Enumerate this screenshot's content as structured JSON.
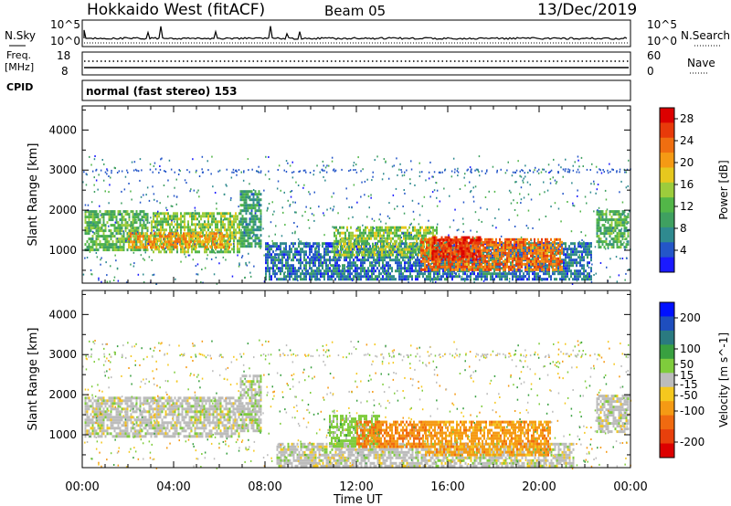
{
  "header": {
    "site": "Hokkaido West (fitACF)",
    "beam": "Beam 05",
    "date": "13/Dec/2019"
  },
  "noise_panel": {
    "left_label": "N.Sky",
    "right_label": "N.Search",
    "top_tick": "10^5",
    "bottom_tick": "10^0"
  },
  "freq_panel": {
    "left_label_1": "Freq.",
    "left_label_2": "[MHz]",
    "right_label": "Nave",
    "left_top_tick": "18",
    "left_bottom_tick": "8",
    "right_top_tick": "60",
    "right_bottom_tick": "0"
  },
  "cpid": {
    "label": "CPID",
    "mode": "normal (fast stereo) 153"
  },
  "colors": {
    "power_scale": [
      "#1a1aff",
      "#2456c8",
      "#2f8a8f",
      "#3fa060",
      "#52b648",
      "#9ccc3c",
      "#e6c81e",
      "#f59a14",
      "#f06e10",
      "#e83a0a",
      "#dc0000"
    ],
    "velocity_scale": [
      "#0010ff",
      "#1e4ebe",
      "#2a7a80",
      "#39a040",
      "#7fcc3c",
      "#bcbcbc",
      "#f5c81e",
      "#f59a14",
      "#f06a10",
      "#e8400c",
      "#dc0000"
    ]
  },
  "chart_data": [
    {
      "type": "heatmap",
      "title": "Power",
      "ylabel": "Slant Range [km]",
      "xlabel": "Time UT",
      "x_ticks": [
        "00:00",
        "04:00",
        "08:00",
        "12:00",
        "16:00",
        "20:00",
        "00:00"
      ],
      "y_ticks": [
        1000,
        2000,
        3000,
        4000
      ],
      "ylim": [
        180,
        4600
      ],
      "colorbar": {
        "label": "Power [dB]",
        "ticks": [
          4,
          8,
          12,
          16,
          20,
          24,
          28
        ],
        "range": [
          0,
          30
        ]
      },
      "regions": [
        {
          "t0": 0.1,
          "t1": 2.9,
          "r0": 1000,
          "r1": 2000,
          "value": 12
        },
        {
          "t0": 3.0,
          "t1": 6.9,
          "r0": 950,
          "r1": 1950,
          "value": 14
        },
        {
          "t0": 2.0,
          "t1": 6.5,
          "r0": 1050,
          "r1": 1450,
          "value": 20
        },
        {
          "t0": 6.9,
          "t1": 7.8,
          "r0": 1100,
          "r1": 2500,
          "value": 9
        },
        {
          "t0": 8.0,
          "t1": 22.3,
          "r0": 250,
          "r1": 1200,
          "value": 6
        },
        {
          "t0": 11.0,
          "t1": 15.5,
          "r0": 900,
          "r1": 1600,
          "value": 14
        },
        {
          "t0": 14.8,
          "t1": 21.0,
          "r0": 500,
          "r1": 1300,
          "value": 23
        },
        {
          "t0": 15.3,
          "t1": 17.4,
          "r0": 750,
          "r1": 1350,
          "value": 27
        },
        {
          "t0": 22.5,
          "t1": 23.9,
          "r0": 1050,
          "r1": 2000,
          "value": 11
        }
      ]
    },
    {
      "type": "heatmap",
      "title": "Velocity",
      "ylabel": "Slant Range [km]",
      "xlabel": "Time UT",
      "x_ticks": [
        "00:00",
        "04:00",
        "08:00",
        "12:00",
        "16:00",
        "20:00",
        "00:00"
      ],
      "y_ticks": [
        1000,
        2000,
        3000,
        4000
      ],
      "ylim": [
        180,
        4600
      ],
      "colorbar": {
        "label": "Velocity [m s^-1]",
        "ticks": [
          200,
          100,
          50,
          15,
          -15,
          -50,
          -100,
          -200
        ],
        "range": [
          -250,
          250
        ]
      },
      "regions": [
        {
          "t0": 0.1,
          "t1": 6.9,
          "r0": 950,
          "r1": 1950,
          "value": 0
        },
        {
          "t0": 6.9,
          "t1": 7.8,
          "r0": 1100,
          "r1": 2500,
          "value": 5
        },
        {
          "t0": 8.5,
          "t1": 21.5,
          "r0": 250,
          "r1": 800,
          "value": 0
        },
        {
          "t0": 10.8,
          "t1": 13.0,
          "r0": 700,
          "r1": 1500,
          "value": 40
        },
        {
          "t0": 12.0,
          "t1": 15.0,
          "r0": 700,
          "r1": 1350,
          "value": -110
        },
        {
          "t0": 15.0,
          "t1": 20.5,
          "r0": 500,
          "r1": 1350,
          "value": -90
        },
        {
          "t0": 22.5,
          "t1": 23.9,
          "r0": 1050,
          "r1": 2000,
          "value": 0
        }
      ]
    }
  ]
}
